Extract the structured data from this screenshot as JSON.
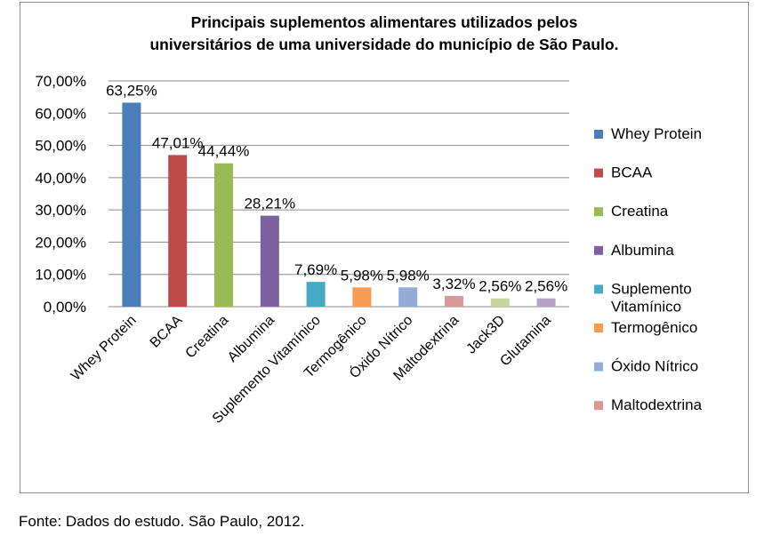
{
  "chart_data": {
    "type": "bar",
    "title_lines": [
      "Principais suplementos alimentares utilizados pelos",
      "universitários de uma universidade do município de São Paulo."
    ],
    "categories": [
      "Whey Protein",
      "BCAA",
      "Creatina",
      "Albumina",
      "Suplemento Vitamínico",
      "Termogênico",
      "Óxido Nítrico",
      "Maltodextrina",
      "Jack3D",
      "Glutamina"
    ],
    "values": [
      63.25,
      47.01,
      44.44,
      28.21,
      7.69,
      5.98,
      5.98,
      3.32,
      2.56,
      2.56
    ],
    "data_labels": [
      "63,25%",
      "47,01%",
      "44,44%",
      "28,21%",
      "7,69%",
      "5,98%",
      "5,98%",
      "3,32%",
      "2,56%",
      "2,56%"
    ],
    "colors": [
      "#4a7ebb",
      "#be4b48",
      "#98b954",
      "#7d60a0",
      "#46aac5",
      "#f59d56",
      "#92acd8",
      "#d99795",
      "#c3d69b",
      "#b3a2c7"
    ],
    "ylim": [
      0,
      70
    ],
    "yticks": [
      0,
      10,
      20,
      30,
      40,
      50,
      60,
      70
    ],
    "ytick_labels": [
      "0,00%",
      "10,00%",
      "20,00%",
      "30,00%",
      "40,00%",
      "50,00%",
      "60,00%",
      "70,00%"
    ],
    "grid": true,
    "legend": {
      "position": "right",
      "entries": [
        {
          "lines": [
            "Whey Protein"
          ],
          "color": "#4a7ebb"
        },
        {
          "lines": [
            "BCAA"
          ],
          "color": "#be4b48"
        },
        {
          "lines": [
            "Creatina"
          ],
          "color": "#98b954"
        },
        {
          "lines": [
            "Albumina"
          ],
          "color": "#7d60a0"
        },
        {
          "lines": [
            "Suplemento",
            "Vitamínico"
          ],
          "color": "#46aac5"
        },
        {
          "lines": [
            "Termogênico"
          ],
          "color": "#f59d56"
        },
        {
          "lines": [
            "Óxido Nítrico"
          ],
          "color": "#92acd8"
        },
        {
          "lines": [
            "Maltodextrina"
          ],
          "color": "#d99795"
        }
      ]
    }
  },
  "source_note": "Fonte: Dados do estudo. São Paulo, 2012."
}
